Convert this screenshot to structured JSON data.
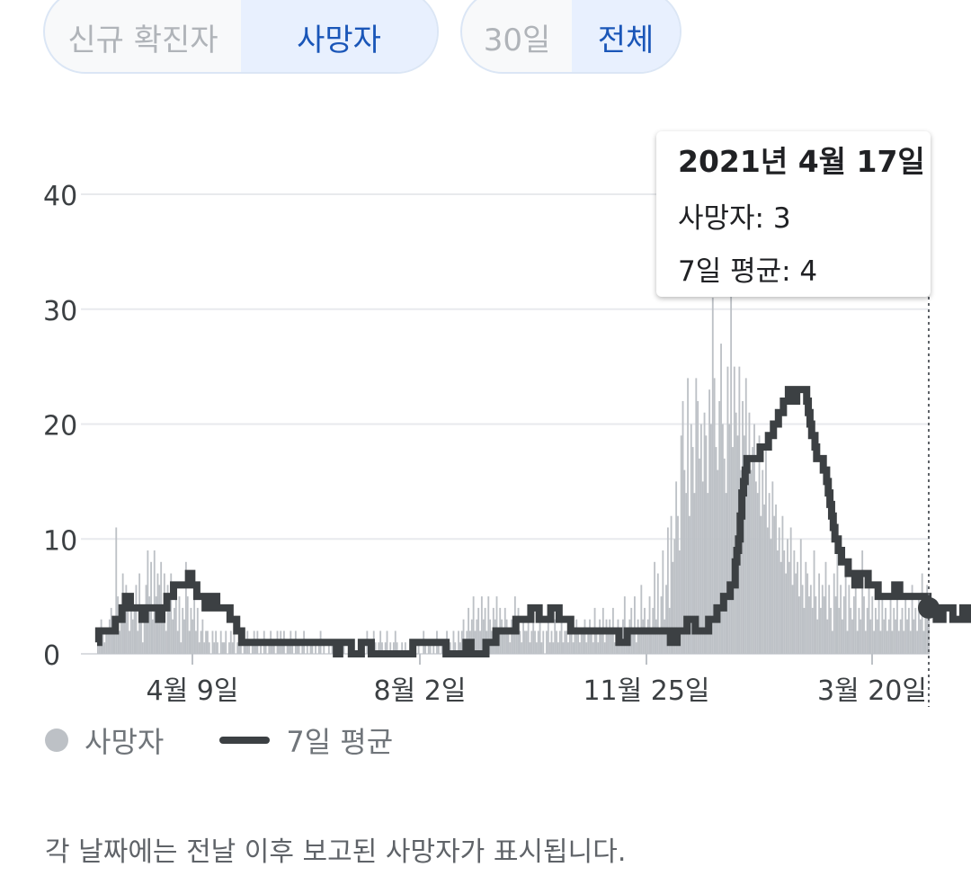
{
  "metric_toggle": {
    "options": [
      "신규 확진자",
      "사망자"
    ],
    "selected": "사망자"
  },
  "range_toggle": {
    "options": [
      "30일",
      "전체"
    ],
    "selected": "전체"
  },
  "tooltip": {
    "date": "2021년 4월 17일",
    "deaths": "사망자: 3",
    "avg": "7일 평균: 4"
  },
  "legend": {
    "bars": "사망자",
    "line": "7일 평균"
  },
  "footnote": "각 날짜에는 전날 이후 보고된 사망자가 표시됩니다.",
  "colors": {
    "bar": "#bdc1c6",
    "line": "#3c4043",
    "grid": "#e8eaed",
    "accent": "#1a56b8"
  },
  "chart_data": {
    "type": "bar",
    "title": "",
    "xlabel": "",
    "ylabel": "",
    "ylim": [
      0,
      40
    ],
    "yticks": [
      "0",
      "10",
      "20",
      "30",
      "40"
    ],
    "xticks": [
      "4월 9일",
      "8월 2일",
      "11월 25일",
      "3월 20일"
    ],
    "x_range": [
      "2020년 3월 7일",
      "2021년 4월 17일"
    ],
    "series": [
      {
        "name": "사망자",
        "kind": "bar",
        "values": [
          1,
          2,
          3,
          2,
          1,
          2,
          2,
          3,
          4,
          3,
          2,
          11,
          5,
          2,
          4,
          7,
          3,
          6,
          4,
          2,
          5,
          3,
          4,
          6,
          2,
          7,
          3,
          1,
          4,
          6,
          9,
          5,
          8,
          3,
          9,
          5,
          7,
          6,
          8,
          4,
          7,
          2,
          6,
          5,
          7,
          3,
          4,
          6,
          2,
          5,
          1,
          4,
          3,
          8,
          5,
          2,
          4,
          3,
          5,
          2,
          4,
          1,
          2,
          3,
          1,
          2,
          2,
          1,
          0,
          2,
          1,
          2,
          1,
          0,
          2,
          1,
          1,
          2,
          0,
          1,
          2,
          1,
          2,
          0,
          1,
          2,
          1,
          0,
          2,
          1,
          2,
          1,
          0,
          1,
          2,
          1,
          2,
          0,
          1,
          0,
          2,
          1,
          0,
          1,
          2,
          1,
          1,
          0,
          2,
          1,
          2,
          1,
          2,
          0,
          1,
          1,
          2,
          1,
          0,
          2,
          1,
          1,
          0,
          1,
          2,
          0,
          1,
          0,
          1,
          1,
          0,
          1,
          0,
          1,
          2,
          0,
          1,
          0,
          0,
          1,
          0,
          1,
          0,
          1,
          0,
          0,
          1,
          0,
          1,
          0,
          0,
          1,
          0,
          1,
          0,
          0,
          0,
          1,
          0,
          1,
          0,
          0,
          2,
          0,
          1,
          0,
          2,
          1,
          0,
          1,
          2,
          1,
          0,
          1,
          2,
          0,
          1,
          0,
          1,
          2,
          1,
          0,
          0,
          1,
          0,
          1,
          0,
          0,
          1,
          0,
          0,
          1,
          0,
          1,
          0,
          0,
          2,
          1,
          0,
          1,
          1,
          0,
          1,
          0,
          2,
          1,
          0,
          1,
          0,
          1,
          2,
          1,
          1,
          0,
          2,
          1,
          0,
          2,
          1,
          2,
          3,
          1,
          2,
          4,
          2,
          3,
          5,
          2,
          3,
          4,
          2,
          5,
          3,
          4,
          2,
          5,
          3,
          2,
          4,
          3,
          5,
          2,
          4,
          3,
          2,
          4,
          3,
          2,
          1,
          3,
          2,
          5,
          3,
          4,
          2,
          1,
          3,
          2,
          2,
          3,
          1,
          2,
          3,
          2,
          1,
          2,
          3,
          1,
          2,
          0,
          2,
          3,
          1,
          2,
          1,
          3,
          2,
          1,
          2,
          3,
          1,
          2,
          2,
          1,
          3,
          2,
          1,
          2,
          3,
          2,
          1,
          2,
          2,
          3,
          1,
          2,
          3,
          2,
          1,
          4,
          2,
          1,
          3,
          2,
          4,
          1,
          3,
          2,
          3,
          2,
          4,
          1,
          2,
          3,
          1,
          2,
          3,
          5,
          2,
          1,
          3,
          4,
          2,
          5,
          1,
          3,
          2,
          6,
          3,
          4,
          2,
          3,
          5,
          2,
          4,
          8,
          3,
          7,
          2,
          5,
          9,
          3,
          6,
          11,
          4,
          12,
          8,
          10,
          15,
          12,
          9,
          19,
          22,
          16,
          14,
          24,
          12,
          20,
          18,
          14,
          24,
          22,
          17,
          20,
          15,
          21,
          19,
          14,
          23,
          20,
          31,
          24,
          18,
          16,
          22,
          27,
          20,
          17,
          14,
          25,
          20,
          32,
          18,
          25,
          21,
          19,
          25,
          16,
          22,
          19,
          24,
          17,
          21,
          16,
          18,
          20,
          15,
          14,
          19,
          12,
          16,
          13,
          18,
          11,
          14,
          10,
          15,
          12,
          13,
          9,
          11,
          8,
          12,
          9,
          7,
          10,
          8,
          11,
          6,
          9,
          7,
          8,
          5,
          10,
          6,
          4,
          8,
          7,
          5,
          6,
          4,
          9,
          5,
          3,
          7,
          4,
          6,
          5,
          8,
          3,
          6,
          4,
          2,
          7,
          5,
          9,
          4,
          6,
          3,
          5,
          8,
          2,
          6,
          4,
          3,
          5,
          7,
          2,
          4,
          3,
          9,
          5,
          2,
          4,
          6,
          3,
          5,
          2,
          4,
          3,
          6,
          2,
          5,
          3,
          4,
          2,
          3,
          5,
          2,
          4,
          3,
          6,
          2,
          3,
          4,
          2,
          5,
          3,
          4,
          2,
          6,
          3,
          4,
          2,
          5,
          3,
          7,
          2,
          4,
          6,
          3
        ]
      },
      {
        "name": "7일 평균",
        "kind": "line",
        "values": [
          1,
          2,
          2,
          2,
          2,
          2,
          2,
          2,
          2,
          2,
          2,
          3,
          3,
          3,
          3,
          4,
          4,
          5,
          5,
          5,
          4,
          4,
          4,
          4,
          4,
          4,
          4,
          3,
          3,
          4,
          4,
          4,
          4,
          4,
          4,
          4,
          4,
          3,
          3,
          4,
          4,
          4,
          5,
          5,
          5,
          5,
          6,
          6,
          6,
          6,
          6,
          6,
          6,
          6,
          6,
          7,
          7,
          6,
          6,
          6,
          5,
          5,
          5,
          5,
          5,
          4,
          4,
          4,
          5,
          5,
          5,
          5,
          4,
          4,
          4,
          4,
          4,
          4,
          4,
          4,
          3,
          3,
          3,
          3,
          2,
          2,
          2,
          1,
          1,
          1,
          1,
          1,
          1,
          1,
          1,
          1,
          1,
          1,
          1,
          1,
          1,
          1,
          1,
          1,
          1,
          1,
          1,
          1,
          1,
          1,
          1,
          1,
          1,
          1,
          1,
          1,
          1,
          1,
          1,
          1,
          1,
          1,
          1,
          1,
          1,
          1,
          1,
          1,
          1,
          1,
          1,
          1,
          1,
          1,
          1,
          1,
          1,
          1,
          1,
          1,
          1,
          1,
          1,
          1,
          0,
          0,
          1,
          1,
          1,
          1,
          1,
          1,
          1,
          0,
          0,
          0,
          0,
          0,
          0,
          1,
          1,
          1,
          1,
          1,
          1,
          0,
          0,
          0,
          0,
          0,
          0,
          0,
          0,
          0,
          0,
          0,
          0,
          0,
          0,
          0,
          0,
          0,
          0,
          0,
          0,
          0,
          0,
          0,
          0,
          0,
          1,
          1,
          1,
          1,
          1,
          1,
          1,
          1,
          1,
          1,
          1,
          1,
          1,
          1,
          1,
          1,
          1,
          1,
          1,
          1,
          0,
          0,
          0,
          0,
          0,
          0,
          0,
          0,
          0,
          0,
          0,
          0,
          1,
          1,
          1,
          0,
          0,
          0,
          0,
          0,
          0,
          0,
          0,
          0,
          1,
          1,
          1,
          1,
          1,
          1,
          2,
          2,
          2,
          2,
          2,
          2,
          2,
          2,
          2,
          2,
          2,
          2,
          3,
          3,
          3,
          3,
          3,
          3,
          3,
          3,
          3,
          4,
          4,
          4,
          4,
          4,
          3,
          3,
          3,
          3,
          3,
          3,
          3,
          4,
          4,
          4,
          4,
          4,
          3,
          3,
          3,
          3,
          3,
          3,
          3,
          2,
          2,
          2,
          2,
          2,
          2,
          2,
          2,
          2,
          2,
          2,
          2,
          2,
          2,
          2,
          2,
          2,
          2,
          2,
          2,
          2,
          2,
          2,
          2,
          2,
          2,
          2,
          2,
          2,
          1,
          1,
          1,
          1,
          1,
          2,
          2,
          2,
          2,
          2,
          2,
          2,
          2,
          2,
          2,
          2,
          2,
          2,
          2,
          2,
          2,
          2,
          2,
          2,
          2,
          2,
          2,
          2,
          2,
          2,
          2,
          1,
          1,
          1,
          1,
          2,
          2,
          2,
          2,
          2,
          2,
          3,
          3,
          3,
          3,
          3,
          2,
          2,
          2,
          2,
          2,
          2,
          2,
          2,
          3,
          3,
          3,
          3,
          3,
          4,
          4,
          4,
          4,
          5,
          5,
          5,
          5,
          6,
          6,
          6,
          8,
          9,
          10,
          12,
          14,
          15,
          16,
          17,
          17,
          17,
          17,
          17,
          17,
          17,
          17,
          18,
          18,
          18,
          18,
          18,
          19,
          19,
          19,
          20,
          20,
          20,
          21,
          21,
          21,
          22,
          22,
          22,
          23,
          23,
          23,
          22,
          22,
          23,
          23,
          23,
          23,
          23,
          23,
          22,
          21,
          20,
          19,
          19,
          18,
          17,
          17,
          17,
          17,
          16,
          16,
          15,
          14,
          13,
          12,
          11,
          10,
          10,
          9,
          9,
          8,
          8,
          8,
          8,
          7,
          7,
          7,
          7,
          6,
          6,
          6,
          7,
          7,
          7,
          7,
          7,
          6,
          6,
          6,
          6,
          6,
          6,
          5,
          5,
          5,
          5,
          5,
          5,
          5,
          5,
          5,
          5,
          6,
          6,
          6,
          5,
          5,
          5,
          5,
          5,
          5,
          5,
          5,
          5,
          5,
          5,
          5,
          5,
          5,
          5,
          5,
          5,
          4,
          4,
          4,
          4,
          4,
          3,
          3,
          3,
          3,
          4,
          4,
          4,
          4,
          4,
          4,
          3,
          3,
          3,
          3,
          3,
          3,
          4,
          4,
          4,
          3,
          3,
          3,
          4,
          4,
          4
        ]
      }
    ],
    "highlight": {
      "date": "2021년 4월 17일",
      "deaths": 3,
      "avg": 4
    },
    "grid": true,
    "legend_position": "bottom-left"
  }
}
